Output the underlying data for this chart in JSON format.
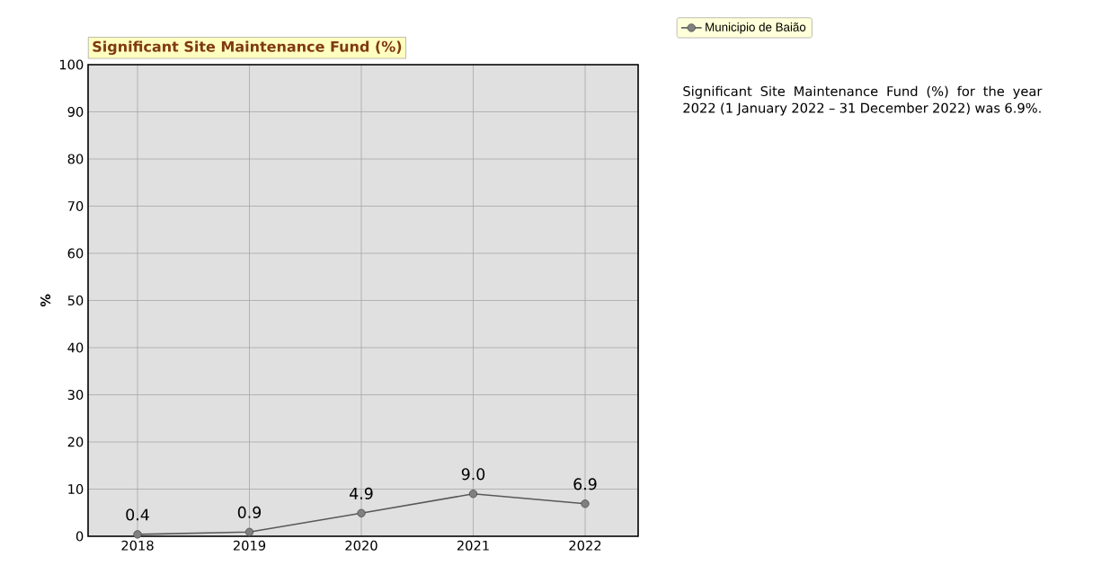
{
  "chart_data": {
    "type": "line",
    "title": "Significant Site Maintenance Fund (%)",
    "ylabel": "%",
    "categories": [
      "2018",
      "2019",
      "2020",
      "2021",
      "2022"
    ],
    "series": [
      {
        "name": "Municipio de Baião",
        "color": "#595959",
        "values": [
          0.4,
          0.9,
          4.9,
          9.0,
          6.9
        ],
        "value_labels": [
          "0.4",
          "0.9",
          "4.9",
          "9.0",
          "6.9"
        ]
      }
    ],
    "ylim": [
      0,
      100
    ],
    "yticks": [
      0,
      10,
      20,
      30,
      40,
      50,
      60,
      70,
      80,
      90,
      100
    ],
    "grid": true,
    "legend": "top right",
    "marker": "circle",
    "line_style": "solid",
    "annotations": [
      "Significant Site Maintenance Fund (%) for the year 2022 (1 January 2022 – 31 December 2022) was 6.9%."
    ]
  }
}
